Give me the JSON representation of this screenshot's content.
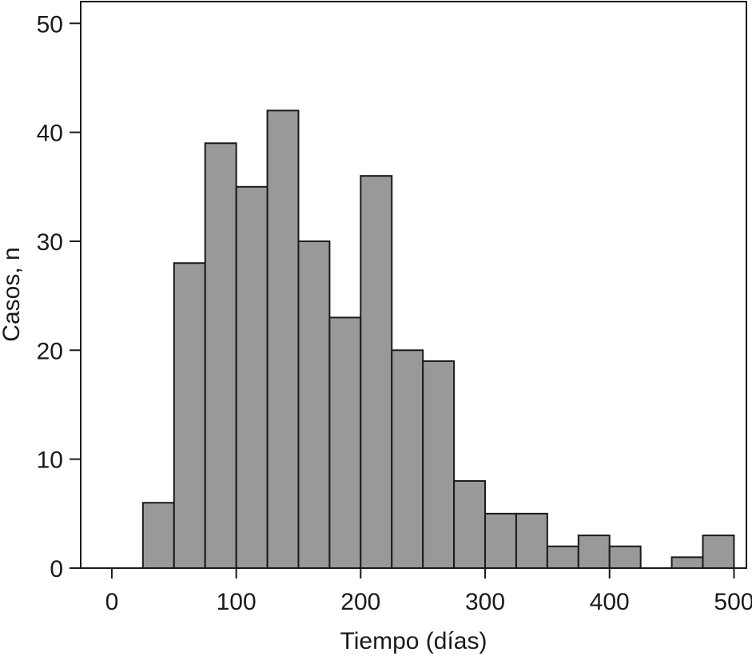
{
  "chart_data": {
    "type": "bar",
    "title": "",
    "xlabel": "Tiempo (días)",
    "ylabel": "Casos, n",
    "xlim": [
      -25,
      510
    ],
    "ylim": [
      0,
      52
    ],
    "bin_width": 25,
    "bins": [
      {
        "start": 0,
        "value": 0
      },
      {
        "start": 25,
        "value": 6
      },
      {
        "start": 50,
        "value": 28
      },
      {
        "start": 75,
        "value": 39
      },
      {
        "start": 100,
        "value": 35
      },
      {
        "start": 125,
        "value": 42
      },
      {
        "start": 150,
        "value": 30
      },
      {
        "start": 175,
        "value": 23
      },
      {
        "start": 200,
        "value": 36
      },
      {
        "start": 225,
        "value": 20
      },
      {
        "start": 250,
        "value": 19
      },
      {
        "start": 275,
        "value": 8
      },
      {
        "start": 300,
        "value": 5
      },
      {
        "start": 325,
        "value": 5
      },
      {
        "start": 350,
        "value": 2
      },
      {
        "start": 375,
        "value": 3
      },
      {
        "start": 400,
        "value": 2
      },
      {
        "start": 425,
        "value": 0
      },
      {
        "start": 450,
        "value": 1
      },
      {
        "start": 475,
        "value": 3
      }
    ],
    "x_ticks": [
      {
        "value": 0,
        "label": "0"
      },
      {
        "value": 100,
        "label": "100"
      },
      {
        "value": 200,
        "label": "200"
      },
      {
        "value": 300,
        "label": "300"
      },
      {
        "value": 400,
        "label": "400"
      },
      {
        "value": 500,
        "label": "500"
      }
    ],
    "y_ticks": [
      {
        "value": 0,
        "label": "0"
      },
      {
        "value": 10,
        "label": "10"
      },
      {
        "value": 20,
        "label": "20"
      },
      {
        "value": 30,
        "label": "30"
      },
      {
        "value": 40,
        "label": "40"
      },
      {
        "value": 50,
        "label": "50"
      }
    ],
    "grid": false,
    "legend": "none",
    "bar_color": "#999999",
    "bar_edge_color": "#1a1a1a"
  }
}
